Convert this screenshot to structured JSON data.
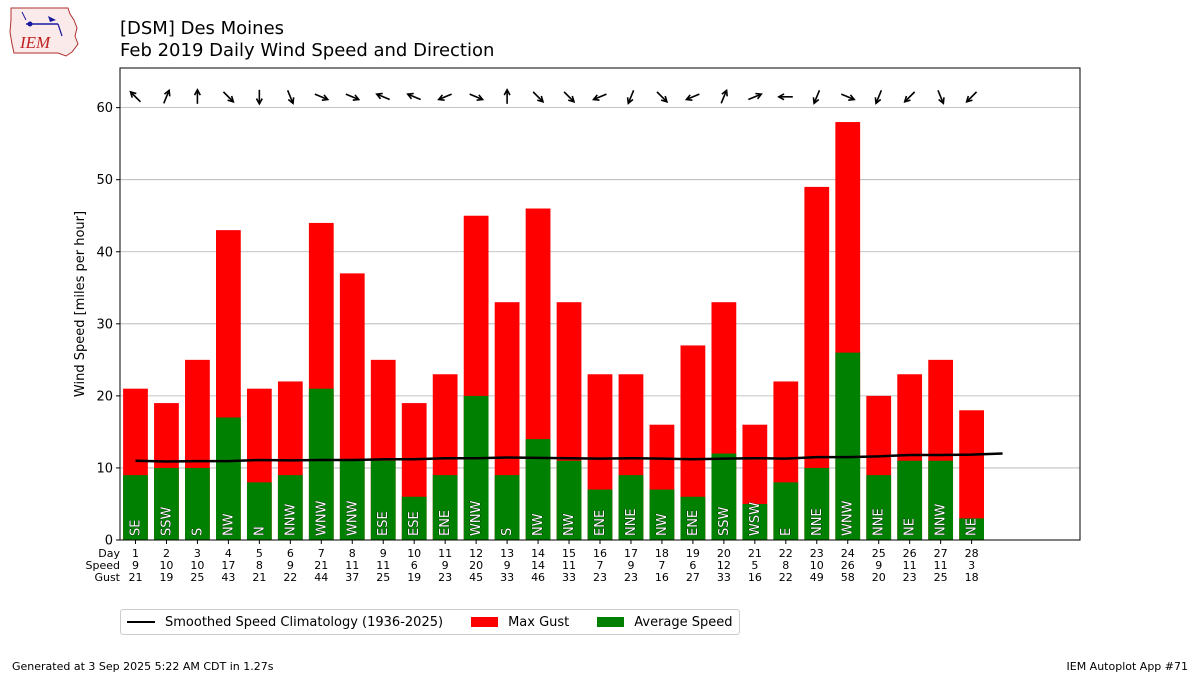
{
  "header": {
    "title_line1": "[DSM] Des Moines",
    "title_line2": "Feb 2019 Daily Wind Speed and Direction"
  },
  "logo": {
    "text": "IEM",
    "icon": "iowa-state-outline-icon"
  },
  "footer": {
    "left": "Generated at 3 Sep 2025 5:22 AM CDT in 1.27s",
    "right": "IEM Autoplot App #71"
  },
  "colors": {
    "gust": "#ff0000",
    "speed": "#008000",
    "climo": "#000000"
  },
  "chart_data": {
    "type": "bar",
    "ylabel": "Wind Speed [miles per hour]",
    "ylim": [
      0,
      65.5
    ],
    "yticks": [
      0,
      10,
      20,
      30,
      40,
      50,
      60
    ],
    "grid": true,
    "row_labels": [
      "Day",
      "Speed",
      "Gust"
    ],
    "days": [
      1,
      2,
      3,
      4,
      5,
      6,
      7,
      8,
      9,
      10,
      11,
      12,
      13,
      14,
      15,
      16,
      17,
      18,
      19,
      20,
      21,
      22,
      23,
      24,
      25,
      26,
      27,
      28
    ],
    "avg_speed": [
      9,
      10,
      10,
      17,
      8,
      9,
      21,
      11,
      11,
      6,
      9,
      20,
      9,
      14,
      11,
      7,
      9,
      7,
      6,
      12,
      5,
      8,
      10,
      26,
      9,
      11,
      11,
      3
    ],
    "max_gust": [
      21,
      19,
      25,
      43,
      21,
      22,
      44,
      37,
      25,
      19,
      23,
      45,
      33,
      46,
      33,
      23,
      23,
      16,
      27,
      33,
      16,
      22,
      49,
      58,
      20,
      23,
      25,
      18
    ],
    "direction": [
      "SE",
      "SSW",
      "S",
      "NW",
      "N",
      "NNW",
      "WNW",
      "WNW",
      "ESE",
      "ESE",
      "ENE",
      "WNW",
      "S",
      "NW",
      "NW",
      "ENE",
      "NNE",
      "NW",
      "ENE",
      "SSW",
      "WSW",
      "E",
      "NNE",
      "WNW",
      "NNE",
      "NE",
      "NNW",
      "NE"
    ],
    "climatology_x": [
      1,
      2,
      3,
      4,
      5,
      6,
      7,
      8,
      9,
      10,
      11,
      12,
      13,
      14,
      15,
      16,
      17,
      18,
      19,
      20,
      21,
      22,
      23,
      24,
      25,
      26,
      27,
      28,
      29
    ],
    "climatology_y": [
      11.0,
      10.9,
      10.95,
      10.95,
      11.1,
      11.05,
      11.1,
      11.1,
      11.2,
      11.2,
      11.35,
      11.35,
      11.45,
      11.4,
      11.35,
      11.3,
      11.35,
      11.3,
      11.2,
      11.3,
      11.35,
      11.3,
      11.5,
      11.5,
      11.6,
      11.8,
      11.8,
      11.85,
      12.0
    ],
    "series": [
      {
        "name": "Smoothed Speed Climatology (1936-2025)",
        "kind": "line"
      },
      {
        "name": "Max Gust",
        "kind": "bar"
      },
      {
        "name": "Average Speed",
        "kind": "bar"
      }
    ],
    "legend_position": "bottom-left"
  }
}
